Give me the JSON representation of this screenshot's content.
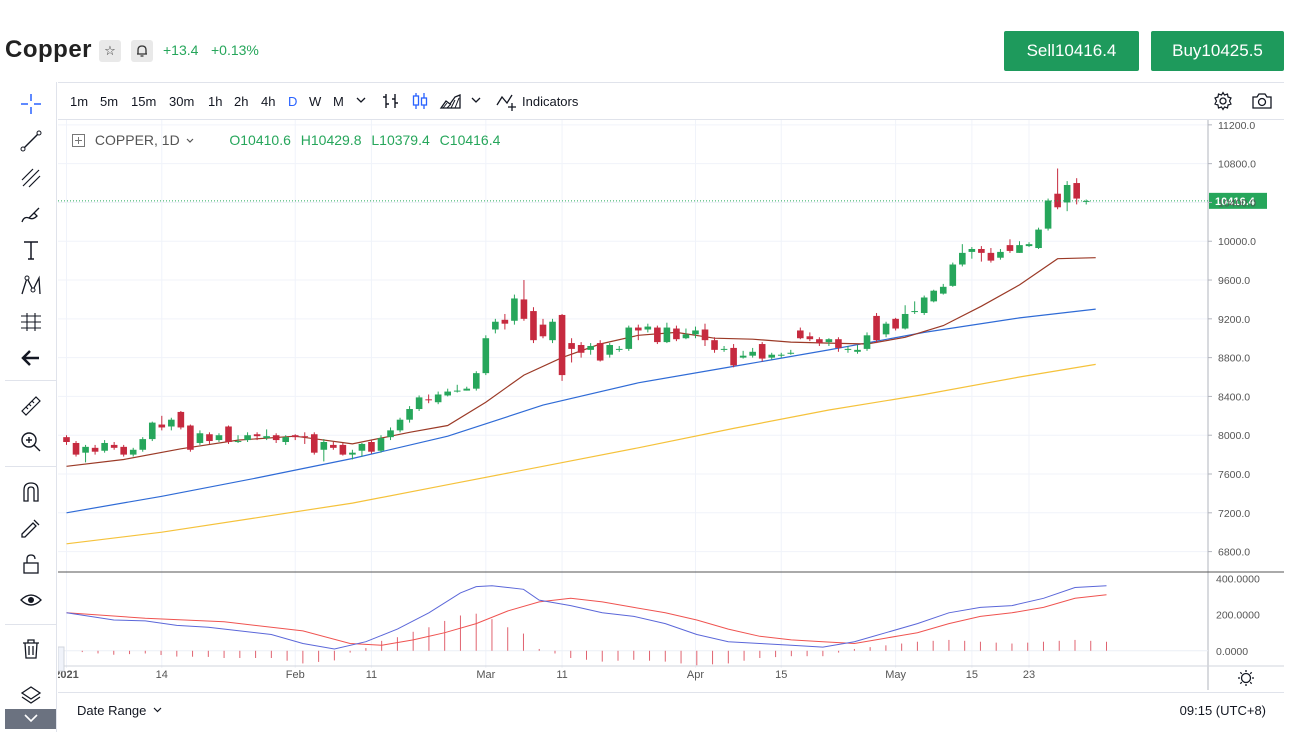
{
  "header": {
    "title": "Copper",
    "star_icon": "star-icon",
    "alert_icon": "bell-icon",
    "change_abs": "+13.4",
    "change_pct": "+0.13%",
    "sell_label": "Sell10416.4",
    "buy_label": "Buy10425.5",
    "accent_color": "#1e9a5c"
  },
  "left_toolbar": {
    "tools": [
      "crosshair-icon",
      "trend-line-icon",
      "pitchfork-icon",
      "brush-icon",
      "text-icon",
      "pattern-icon",
      "forecast-icon",
      "back-arrow-icon",
      "ruler-icon",
      "zoom-icon",
      "magnet-icon",
      "lock-draw-icon",
      "unlock-icon",
      "eye-icon",
      "trash-icon",
      "layers-icon"
    ]
  },
  "top_toolbar": {
    "timeframes": [
      "1m",
      "5m",
      "15m",
      "30m",
      "1h",
      "2h",
      "4h",
      "D",
      "W",
      "M"
    ],
    "active_timeframe": "D",
    "indicators_label": "Indicators"
  },
  "legend": {
    "symbol": "COPPER, 1D",
    "open": "O10410.6",
    "high": "H10429.8",
    "low": "L10379.4",
    "close": "C10416.4"
  },
  "price_axis": {
    "labels": [
      "11200.0",
      "10800.0",
      "10400.0",
      "10000.0",
      "9600.0",
      "9200.0",
      "8800.0",
      "8400.0",
      "8000.0",
      "7600.0",
      "7200.0",
      "6800.0"
    ],
    "current_price": "10416.4",
    "current_price_value": 10416.4,
    "up_color": "#26a65b",
    "down_color": "#c62a3f"
  },
  "oscillator_axis": {
    "labels": [
      "400.0000",
      "200.0000",
      "0.0000"
    ]
  },
  "time_axis": {
    "labels": [
      {
        "text": "2021",
        "day": 0,
        "bold": true
      },
      {
        "text": "14",
        "day": 10
      },
      {
        "text": "Feb",
        "day": 24
      },
      {
        "text": "11",
        "day": 32
      },
      {
        "text": "Mar",
        "day": 44
      },
      {
        "text": "11",
        "day": 52
      },
      {
        "text": "Apr",
        "day": 66
      },
      {
        "text": "15",
        "day": 75
      },
      {
        "text": "May",
        "day": 87
      },
      {
        "text": "15",
        "day": 95
      },
      {
        "text": "23",
        "day": 101
      }
    ]
  },
  "bottom_bar": {
    "date_range_label": "Date Range",
    "clock": "09:15 (UTC+8)"
  },
  "chart_data": {
    "type": "candlestick",
    "y_range": [
      6600,
      11250
    ],
    "osc_range": [
      -40,
      430
    ],
    "candles": [
      [
        7980,
        7930,
        8000,
        7900
      ],
      [
        7920,
        7800,
        7940,
        7780
      ],
      [
        7820,
        7880,
        7900,
        7720
      ],
      [
        7870,
        7830,
        7900,
        7800
      ],
      [
        7840,
        7920,
        7950,
        7820
      ],
      [
        7900,
        7870,
        7930,
        7850
      ],
      [
        7880,
        7800,
        7900,
        7780
      ],
      [
        7800,
        7850,
        7870,
        7780
      ],
      [
        7850,
        7960,
        7980,
        7830
      ],
      [
        7960,
        8130,
        8140,
        7940
      ],
      [
        8110,
        8080,
        8200,
        8050
      ],
      [
        8090,
        8160,
        8180,
        8050
      ],
      [
        8240,
        8080,
        8250,
        8060
      ],
      [
        8100,
        7850,
        8110,
        7830
      ],
      [
        7920,
        8020,
        8050,
        7900
      ],
      [
        8010,
        7940,
        8030,
        7910
      ],
      [
        7950,
        8000,
        8020,
        7930
      ],
      [
        8090,
        7930,
        8100,
        7910
      ],
      [
        7930,
        7940,
        8000,
        7920
      ],
      [
        7950,
        8000,
        8030,
        7930
      ],
      [
        8010,
        7990,
        8030,
        7950
      ],
      [
        7970,
        7990,
        8060,
        7950
      ],
      [
        8000,
        7950,
        8020,
        7920
      ],
      [
        7930,
        7980,
        8000,
        7900
      ],
      [
        8000,
        7980,
        8010,
        7950
      ],
      [
        7990,
        7980,
        8030,
        7910
      ],
      [
        8010,
        7820,
        8030,
        7800
      ],
      [
        7850,
        7930,
        7960,
        7730
      ],
      [
        7900,
        7870,
        7930,
        7850
      ],
      [
        7900,
        7800,
        7920,
        7790
      ],
      [
        7800,
        7820,
        7850,
        7750
      ],
      [
        7840,
        7910,
        7920,
        7780
      ],
      [
        7930,
        7830,
        7950,
        7810
      ],
      [
        7840,
        7970,
        8000,
        7820
      ],
      [
        7980,
        8050,
        8080,
        7950
      ],
      [
        8050,
        8160,
        8180,
        8030
      ],
      [
        8160,
        8270,
        8300,
        8130
      ],
      [
        8270,
        8390,
        8410,
        8250
      ],
      [
        8370,
        8360,
        8420,
        8330
      ],
      [
        8340,
        8420,
        8450,
        8320
      ],
      [
        8410,
        8450,
        8480,
        8400
      ],
      [
        8460,
        8460,
        8520,
        8440
      ],
      [
        8460,
        8480,
        8500,
        8460
      ],
      [
        8480,
        8640,
        8660,
        8460
      ],
      [
        8640,
        9000,
        9030,
        8620
      ],
      [
        9090,
        9170,
        9200,
        9050
      ],
      [
        9190,
        9150,
        9250,
        9090
      ],
      [
        9180,
        9410,
        9450,
        9140
      ],
      [
        9400,
        9200,
        9600,
        9180
      ],
      [
        9280,
        8980,
        9320,
        8950
      ],
      [
        9140,
        9020,
        9200,
        9000
      ],
      [
        8980,
        9170,
        9200,
        8950
      ],
      [
        9240,
        8620,
        9250,
        8560
      ],
      [
        8950,
        8890,
        9000,
        8750
      ],
      [
        8930,
        8850,
        8960,
        8800
      ],
      [
        8880,
        8920,
        8950,
        8830
      ],
      [
        8950,
        8770,
        8980,
        8760
      ],
      [
        8830,
        8930,
        8950,
        8800
      ],
      [
        8880,
        8890,
        8920,
        8860
      ],
      [
        8890,
        9110,
        9130,
        8870
      ],
      [
        9110,
        9080,
        9140,
        8980
      ],
      [
        9090,
        9120,
        9150,
        9060
      ],
      [
        9110,
        8960,
        9130,
        8940
      ],
      [
        8960,
        9110,
        9160,
        8950
      ],
      [
        9100,
        8990,
        9130,
        8970
      ],
      [
        9000,
        9040,
        9100,
        8990
      ],
      [
        9040,
        9080,
        9120,
        9000
      ],
      [
        9090,
        8980,
        9150,
        8920
      ],
      [
        8980,
        8880,
        9010,
        8850
      ],
      [
        8880,
        8890,
        8920,
        8860
      ],
      [
        8900,
        8720,
        8940,
        8700
      ],
      [
        8800,
        8820,
        8870,
        8790
      ],
      [
        8820,
        8860,
        8900,
        8800
      ],
      [
        8940,
        8790,
        8960,
        8760
      ],
      [
        8800,
        8830,
        8850,
        8780
      ],
      [
        8820,
        8830,
        8850,
        8800
      ],
      [
        8850,
        8850,
        8880,
        8830
      ],
      [
        9080,
        9000,
        9110,
        8990
      ],
      [
        9020,
        8990,
        9060,
        8970
      ],
      [
        8990,
        8950,
        9010,
        8920
      ],
      [
        8960,
        8990,
        9000,
        8920
      ],
      [
        8990,
        8900,
        9010,
        8860
      ],
      [
        8880,
        8890,
        8920,
        8850
      ],
      [
        8860,
        8880,
        8930,
        8840
      ],
      [
        8890,
        9030,
        9060,
        8870
      ],
      [
        9230,
        8980,
        9260,
        8950
      ],
      [
        9040,
        9150,
        9170,
        9010
      ],
      [
        9200,
        9100,
        9210,
        9080
      ],
      [
        9100,
        9250,
        9340,
        9090
      ],
      [
        9270,
        9280,
        9380,
        9250
      ],
      [
        9260,
        9420,
        9440,
        9240
      ],
      [
        9380,
        9490,
        9500,
        9370
      ],
      [
        9460,
        9530,
        9560,
        9450
      ],
      [
        9540,
        9760,
        9780,
        9530
      ],
      [
        9760,
        9880,
        9970,
        9740
      ],
      [
        9890,
        9920,
        9940,
        9820
      ],
      [
        9920,
        9880,
        9950,
        9790
      ],
      [
        9880,
        9800,
        9930,
        9780
      ],
      [
        9830,
        9890,
        9920,
        9810
      ],
      [
        9960,
        9900,
        10020,
        9880
      ],
      [
        9880,
        9960,
        10000,
        9880
      ],
      [
        9950,
        9970,
        9990,
        9940
      ],
      [
        9930,
        10120,
        10140,
        9920
      ],
      [
        10130,
        10420,
        10440,
        10110
      ],
      [
        10490,
        10350,
        10750,
        10330
      ],
      [
        10400,
        10580,
        10620,
        10310
      ],
      [
        10600,
        10440,
        10650,
        10380
      ],
      [
        10410,
        10416,
        10430,
        10379
      ]
    ],
    "sma_fast": [
      [
        0,
        7680
      ],
      [
        6,
        7750
      ],
      [
        12,
        7860
      ],
      [
        18,
        7950
      ],
      [
        24,
        7990
      ],
      [
        30,
        7910
      ],
      [
        36,
        8030
      ],
      [
        40,
        8100
      ],
      [
        44,
        8340
      ],
      [
        48,
        8620
      ],
      [
        52,
        8800
      ],
      [
        56,
        8940
      ],
      [
        60,
        9030
      ],
      [
        64,
        9060
      ],
      [
        68,
        9000
      ],
      [
        72,
        8990
      ],
      [
        76,
        8960
      ],
      [
        80,
        8950
      ],
      [
        84,
        8940
      ],
      [
        88,
        9010
      ],
      [
        92,
        9130
      ],
      [
        96,
        9330
      ],
      [
        100,
        9550
      ],
      [
        104,
        9820
      ],
      [
        108,
        9830
      ]
    ],
    "sma_mid": [
      [
        0,
        7200
      ],
      [
        10,
        7370
      ],
      [
        20,
        7560
      ],
      [
        30,
        7760
      ],
      [
        40,
        7990
      ],
      [
        50,
        8310
      ],
      [
        60,
        8540
      ],
      [
        70,
        8710
      ],
      [
        80,
        8880
      ],
      [
        90,
        9060
      ],
      [
        100,
        9210
      ],
      [
        108,
        9300
      ]
    ],
    "sma_slow": [
      [
        0,
        6880
      ],
      [
        10,
        7000
      ],
      [
        20,
        7150
      ],
      [
        30,
        7300
      ],
      [
        40,
        7490
      ],
      [
        50,
        7680
      ],
      [
        60,
        7870
      ],
      [
        70,
        8070
      ],
      [
        80,
        8260
      ],
      [
        90,
        8420
      ],
      [
        100,
        8600
      ],
      [
        108,
        8730
      ]
    ],
    "macd": [
      [
        0,
        210
      ],
      [
        6,
        170
      ],
      [
        10,
        165
      ],
      [
        14,
        140
      ],
      [
        18,
        130
      ],
      [
        22,
        110
      ],
      [
        26,
        90
      ],
      [
        30,
        40
      ],
      [
        34,
        10
      ],
      [
        38,
        50
      ],
      [
        42,
        120
      ],
      [
        46,
        210
      ],
      [
        50,
        320
      ],
      [
        52,
        355
      ],
      [
        54,
        360
      ],
      [
        56,
        350
      ],
      [
        58,
        340
      ],
      [
        60,
        280
      ],
      [
        64,
        250
      ],
      [
        68,
        210
      ],
      [
        72,
        190
      ],
      [
        76,
        150
      ],
      [
        80,
        90
      ],
      [
        84,
        50
      ],
      [
        88,
        40
      ],
      [
        92,
        30
      ],
      [
        96,
        20
      ],
      [
        100,
        50
      ],
      [
        104,
        100
      ],
      [
        108,
        150
      ],
      [
        112,
        210
      ],
      [
        116,
        240
      ],
      [
        120,
        250
      ],
      [
        124,
        290
      ],
      [
        128,
        350
      ],
      [
        132,
        360
      ]
    ],
    "signal": [
      [
        0,
        210
      ],
      [
        10,
        180
      ],
      [
        20,
        160
      ],
      [
        30,
        110
      ],
      [
        36,
        40
      ],
      [
        40,
        30
      ],
      [
        44,
        60
      ],
      [
        48,
        100
      ],
      [
        52,
        150
      ],
      [
        56,
        220
      ],
      [
        60,
        270
      ],
      [
        64,
        290
      ],
      [
        68,
        270
      ],
      [
        72,
        240
      ],
      [
        76,
        210
      ],
      [
        80,
        170
      ],
      [
        84,
        120
      ],
      [
        88,
        80
      ],
      [
        92,
        60
      ],
      [
        96,
        50
      ],
      [
        100,
        40
      ],
      [
        104,
        70
      ],
      [
        108,
        100
      ],
      [
        112,
        150
      ],
      [
        116,
        190
      ],
      [
        120,
        210
      ],
      [
        124,
        240
      ],
      [
        128,
        290
      ],
      [
        132,
        310
      ]
    ]
  }
}
